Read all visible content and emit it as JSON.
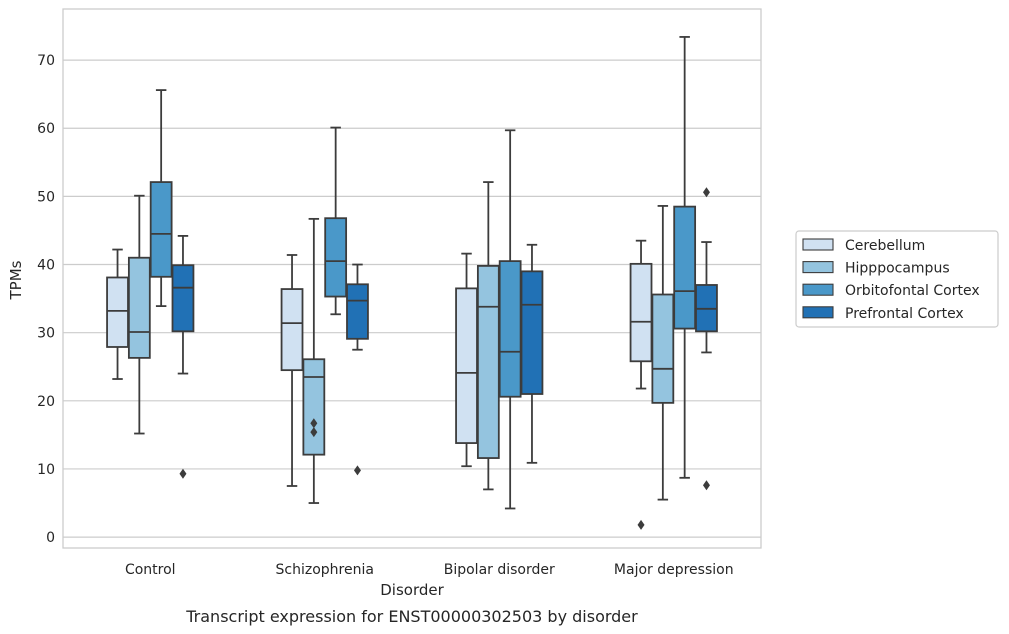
{
  "chart_data": {
    "type": "box",
    "title": "",
    "caption": "Transcript expression for ENST00000302503 by disorder",
    "xlabel": "Disorder",
    "ylabel": "TPMs",
    "ylim": [
      -1.6,
      77.5
    ],
    "yticks": [
      0,
      10,
      20,
      30,
      40,
      50,
      60,
      70
    ],
    "grid": "horizontal",
    "legend_position": "outside-right",
    "categories": [
      "Control",
      "Schizophrenia",
      "Bipolar disorder",
      "Major depression"
    ],
    "series": [
      {
        "name": "Cerebellum",
        "color": "#d0e1f2",
        "boxes": [
          {
            "whislo": 23.2,
            "q1": 27.9,
            "med": 33.2,
            "q3": 38.1,
            "whishi": 42.2,
            "fliers": []
          },
          {
            "whislo": 7.5,
            "q1": 24.5,
            "med": 31.4,
            "q3": 36.4,
            "whishi": 41.4,
            "fliers": []
          },
          {
            "whislo": 10.4,
            "q1": 13.8,
            "med": 24.1,
            "q3": 36.5,
            "whishi": 41.6,
            "fliers": []
          },
          {
            "whislo": 21.8,
            "q1": 25.8,
            "med": 31.6,
            "q3": 40.1,
            "whishi": 43.5,
            "fliers": [
              1.8
            ]
          }
        ]
      },
      {
        "name": "Hipppocampus",
        "color": "#94c4df",
        "boxes": [
          {
            "whislo": 15.2,
            "q1": 26.3,
            "med": 30.1,
            "q3": 41.0,
            "whishi": 50.1,
            "fliers": []
          },
          {
            "whislo": 5.0,
            "q1": 12.1,
            "med": 23.5,
            "q3": 26.1,
            "whishi": 46.7,
            "fliers": [
              15.4,
              16.7
            ]
          },
          {
            "whislo": 7.0,
            "q1": 11.6,
            "med": 33.8,
            "q3": 39.8,
            "whishi": 52.1,
            "fliers": []
          },
          {
            "whislo": 5.5,
            "q1": 19.7,
            "med": 24.7,
            "q3": 35.6,
            "whishi": 48.6,
            "fliers": []
          }
        ]
      },
      {
        "name": "Orbitofontal Cortex",
        "color": "#4a98c9",
        "boxes": [
          {
            "whislo": 33.9,
            "q1": 38.2,
            "med": 44.5,
            "q3": 52.1,
            "whishi": 65.6,
            "fliers": []
          },
          {
            "whislo": 32.7,
            "q1": 35.3,
            "med": 40.5,
            "q3": 46.8,
            "whishi": 60.1,
            "fliers": []
          },
          {
            "whislo": 4.2,
            "q1": 20.6,
            "med": 27.2,
            "q3": 40.5,
            "whishi": 59.7,
            "fliers": []
          },
          {
            "whislo": 8.7,
            "q1": 30.6,
            "med": 36.1,
            "q3": 48.5,
            "whishi": 73.4,
            "fliers": []
          }
        ]
      },
      {
        "name": "Prefrontal Cortex",
        "color": "#2171b5",
        "boxes": [
          {
            "whislo": 24.0,
            "q1": 30.2,
            "med": 36.6,
            "q3": 39.9,
            "whishi": 44.2,
            "fliers": [
              9.3
            ]
          },
          {
            "whislo": 27.5,
            "q1": 29.1,
            "med": 34.7,
            "q3": 37.1,
            "whishi": 40.0,
            "fliers": [
              9.8
            ]
          },
          {
            "whislo": 10.9,
            "q1": 21.0,
            "med": 34.1,
            "q3": 39.0,
            "whishi": 42.9,
            "fliers": []
          },
          {
            "whislo": 27.1,
            "q1": 30.2,
            "med": 33.5,
            "q3": 37.0,
            "whishi": 43.3,
            "fliers": [
              7.6,
              50.6
            ]
          }
        ]
      }
    ]
  }
}
